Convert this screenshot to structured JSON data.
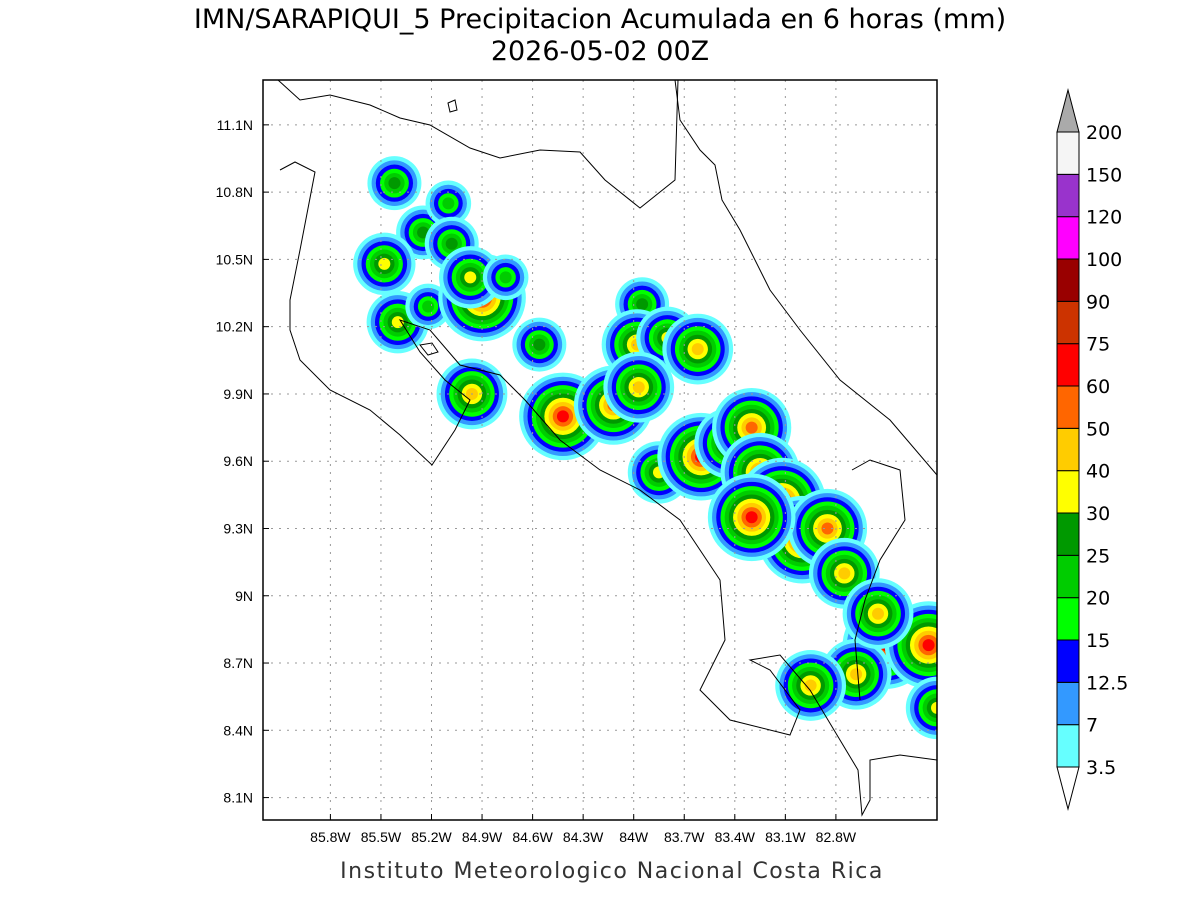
{
  "title_line1": "IMN/SARAPIQUI_5 Precipitacion Acumulada en 6 horas (mm)",
  "title_line2": "2026-05-02 00Z",
  "footer": "Instituto Meteorologico Nacional Costa Rica",
  "map": {
    "lon_min": -86.2,
    "lon_max": -82.2,
    "lat_min": 8.0,
    "lat_max": 11.3,
    "lon_ticks": [
      {
        "value": -85.8,
        "label": "85.8W"
      },
      {
        "value": -85.5,
        "label": "85.5W"
      },
      {
        "value": -85.2,
        "label": "85.2W"
      },
      {
        "value": -84.9,
        "label": "84.9W"
      },
      {
        "value": -84.6,
        "label": "84.6W"
      },
      {
        "value": -84.3,
        "label": "84.3W"
      },
      {
        "value": -84.0,
        "label": "84W"
      },
      {
        "value": -83.7,
        "label": "83.7W"
      },
      {
        "value": -83.4,
        "label": "83.4W"
      },
      {
        "value": -83.1,
        "label": "83.1W"
      },
      {
        "value": -82.8,
        "label": "82.8W"
      }
    ],
    "lat_ticks": [
      {
        "value": 11.1,
        "label": "11.1N"
      },
      {
        "value": 10.8,
        "label": "10.8N"
      },
      {
        "value": 10.5,
        "label": "10.5N"
      },
      {
        "value": 10.2,
        "label": "10.2N"
      },
      {
        "value": 9.9,
        "label": "9.9N"
      },
      {
        "value": 9.6,
        "label": "9.6N"
      },
      {
        "value": 9.3,
        "label": "9.3N"
      },
      {
        "value": 9.0,
        "label": "9N"
      },
      {
        "value": 8.7,
        "label": "8.7N"
      },
      {
        "value": 8.4,
        "label": "8.4N"
      },
      {
        "value": 8.1,
        "label": "8.1N"
      }
    ],
    "grid": true
  },
  "legend": {
    "levels": [
      {
        "label": "3.5",
        "color": "#66ffff"
      },
      {
        "label": "7",
        "color": "#3399ff"
      },
      {
        "label": "12.5",
        "color": "#0000ff"
      },
      {
        "label": "15",
        "color": "#00ff00"
      },
      {
        "label": "20",
        "color": "#00cc00"
      },
      {
        "label": "25",
        "color": "#009900"
      },
      {
        "label": "30",
        "color": "#ffff00"
      },
      {
        "label": "40",
        "color": "#ffcc00"
      },
      {
        "label": "50",
        "color": "#ff6600"
      },
      {
        "label": "60",
        "color": "#ff0000"
      },
      {
        "label": "75",
        "color": "#cc3300"
      },
      {
        "label": "90",
        "color": "#990000"
      },
      {
        "label": "100",
        "color": "#ff00ff"
      },
      {
        "label": "120",
        "color": "#9933cc"
      },
      {
        "label": "150",
        "color": "#f5f5f5"
      },
      {
        "label": "200",
        "color": "#aaaaaa"
      }
    ]
  },
  "precip_cells": [
    {
      "lon": -85.42,
      "lat": 10.84,
      "level": 5
    },
    {
      "lon": -85.25,
      "lat": 10.62,
      "level": 5
    },
    {
      "lon": -85.1,
      "lat": 10.75,
      "level": 4
    },
    {
      "lon": -85.08,
      "lat": 10.57,
      "level": 5
    },
    {
      "lon": -85.48,
      "lat": 10.48,
      "level": 6
    },
    {
      "lon": -85.4,
      "lat": 10.22,
      "level": 6
    },
    {
      "lon": -85.22,
      "lat": 10.29,
      "level": 4
    },
    {
      "lon": -84.9,
      "lat": 10.33,
      "level": 9
    },
    {
      "lon": -84.97,
      "lat": 10.42,
      "level": 6
    },
    {
      "lon": -84.76,
      "lat": 10.42,
      "level": 4
    },
    {
      "lon": -84.56,
      "lat": 10.12,
      "level": 5
    },
    {
      "lon": -84.96,
      "lat": 9.9,
      "level": 7
    },
    {
      "lon": -84.42,
      "lat": 9.8,
      "level": 9
    },
    {
      "lon": -84.12,
      "lat": 9.85,
      "level": 8
    },
    {
      "lon": -83.95,
      "lat": 10.3,
      "level": 5
    },
    {
      "lon": -83.98,
      "lat": 10.12,
      "level": 7
    },
    {
      "lon": -83.8,
      "lat": 10.15,
      "level": 6
    },
    {
      "lon": -83.62,
      "lat": 10.1,
      "level": 7
    },
    {
      "lon": -83.97,
      "lat": 9.93,
      "level": 7
    },
    {
      "lon": -83.85,
      "lat": 9.55,
      "level": 6
    },
    {
      "lon": -83.6,
      "lat": 9.62,
      "level": 9
    },
    {
      "lon": -83.43,
      "lat": 9.68,
      "level": 7
    },
    {
      "lon": -83.3,
      "lat": 9.75,
      "level": 8
    },
    {
      "lon": -83.25,
      "lat": 9.55,
      "level": 8
    },
    {
      "lon": -83.12,
      "lat": 9.42,
      "level": 9
    },
    {
      "lon": -83.0,
      "lat": 9.25,
      "level": 9
    },
    {
      "lon": -82.85,
      "lat": 9.3,
      "level": 8
    },
    {
      "lon": -83.3,
      "lat": 9.35,
      "level": 9
    },
    {
      "lon": -82.75,
      "lat": 9.1,
      "level": 7
    },
    {
      "lon": -82.5,
      "lat": 8.78,
      "level": 9
    },
    {
      "lon": -82.25,
      "lat": 8.78,
      "level": 9
    },
    {
      "lon": -82.68,
      "lat": 8.65,
      "level": 7
    },
    {
      "lon": -82.95,
      "lat": 8.6,
      "level": 7
    },
    {
      "lon": -82.2,
      "lat": 8.5,
      "level": 6
    },
    {
      "lon": -82.55,
      "lat": 8.92,
      "level": 7
    }
  ]
}
